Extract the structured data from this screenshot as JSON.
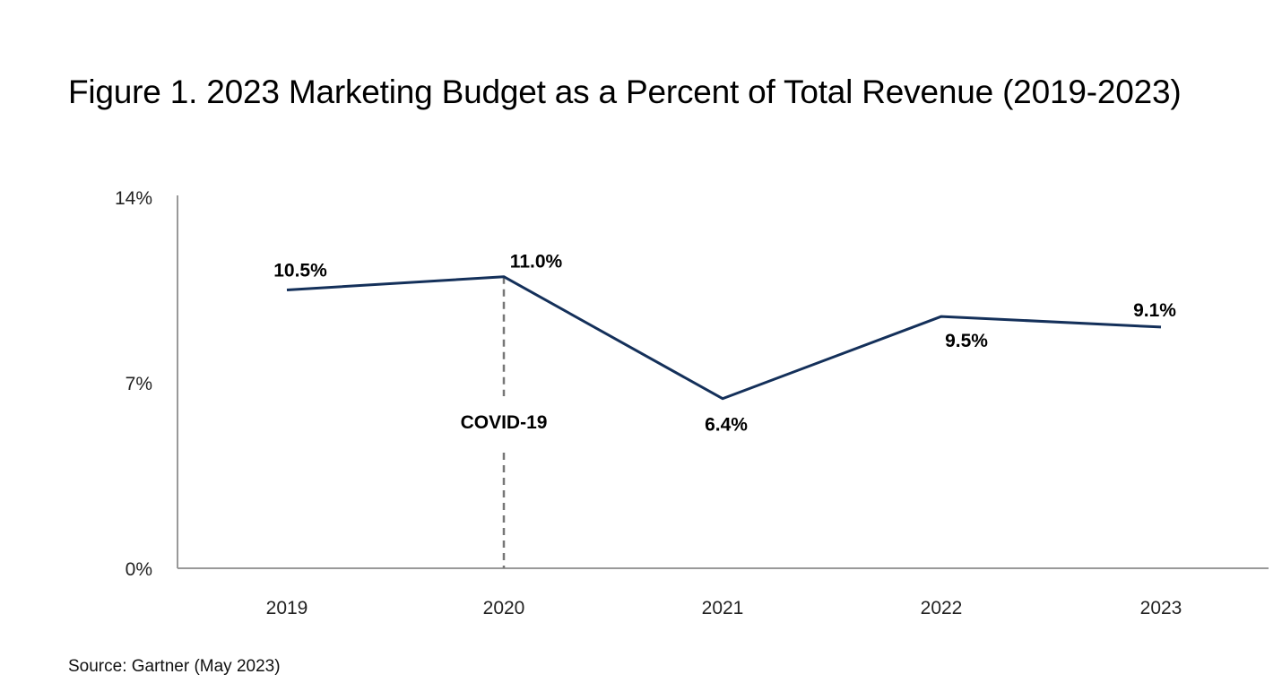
{
  "chart_data": {
    "type": "line",
    "title": "Figure 1. 2023 Marketing Budget as a Percent of Total Revenue (2019-2023)",
    "source": "Source: Gartner (May 2023)",
    "categories": [
      "2019",
      "2020",
      "2021",
      "2022",
      "2023"
    ],
    "values": [
      10.5,
      11.0,
      6.4,
      9.5,
      9.1
    ],
    "data_labels": [
      "10.5%",
      "11.0%",
      "6.4%",
      "9.5%",
      "9.1%"
    ],
    "ylim": [
      0,
      14
    ],
    "yticks": [
      0,
      7,
      14
    ],
    "ytick_labels": [
      "0%",
      "7%",
      "14%"
    ],
    "grid": false,
    "line_color": "#14305a",
    "annotation": {
      "label": "COVID-19",
      "at": "2020",
      "style": "dashed vertical line",
      "color": "#777777"
    }
  }
}
